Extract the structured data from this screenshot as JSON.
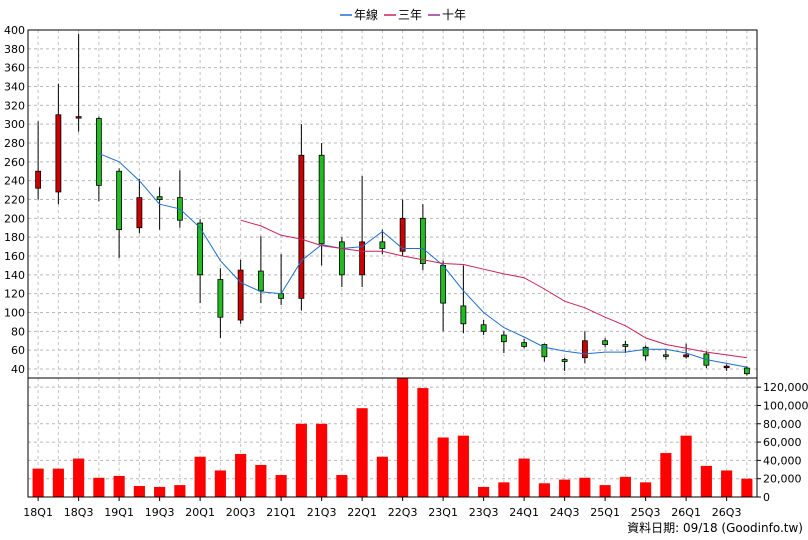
{
  "chart_data": {
    "type": "candlestick",
    "legend": [
      {
        "label": "年線",
        "color": "#1f6fd0"
      },
      {
        "label": "三年",
        "color": "#cc2255"
      },
      {
        "label": "十年",
        "color": "#993399"
      }
    ],
    "legend_position": "top-center",
    "price_axis": {
      "ticks": [
        40,
        60,
        80,
        100,
        120,
        140,
        160,
        180,
        200,
        220,
        240,
        260,
        280,
        300,
        320,
        340,
        360,
        380,
        400
      ],
      "range": [
        40,
        400
      ],
      "side": "left"
    },
    "volume_axis": {
      "ticks": [
        "0",
        "20,000",
        "40,000",
        "60,000",
        "80,000",
        "100,000",
        "120,000"
      ],
      "range": [
        0,
        130000
      ],
      "side": "right"
    },
    "x_tick_labels": [
      "18Q1",
      "18Q3",
      "19Q1",
      "19Q3",
      "20Q1",
      "20Q3",
      "21Q1",
      "21Q3",
      "22Q1",
      "22Q3",
      "23Q1",
      "23Q3",
      "24Q1",
      "24Q3",
      "25Q1",
      "25Q3",
      "26Q1",
      "26Q3"
    ],
    "grid": true,
    "up_color": "#cc0000",
    "down_color": "#22bb22",
    "volume_color": "#ff0000",
    "candles": [
      {
        "x": "18Q1",
        "open": 232,
        "high": 303,
        "low": 220,
        "close": 250
      },
      {
        "x": "18Q2",
        "open": 228,
        "high": 343,
        "low": 215,
        "close": 310
      },
      {
        "x": "18Q3",
        "open": 307,
        "high": 396,
        "low": 292,
        "close": 308
      },
      {
        "x": "18Q4",
        "open": 306,
        "high": 308,
        "low": 218,
        "close": 235
      },
      {
        "x": "19Q1",
        "open": 250,
        "high": 253,
        "low": 158,
        "close": 188
      },
      {
        "x": "19Q2",
        "open": 190,
        "high": 242,
        "low": 184,
        "close": 222
      },
      {
        "x": "19Q3",
        "open": 223,
        "high": 233,
        "low": 188,
        "close": 220
      },
      {
        "x": "19Q4",
        "open": 222,
        "high": 251,
        "low": 190,
        "close": 198
      },
      {
        "x": "20Q1",
        "open": 195,
        "high": 199,
        "low": 110,
        "close": 140
      },
      {
        "x": "20Q2",
        "open": 135,
        "high": 147,
        "low": 73,
        "close": 95
      },
      {
        "x": "20Q3",
        "open": 92,
        "high": 156,
        "low": 88,
        "close": 145
      },
      {
        "x": "20Q4",
        "open": 144,
        "high": 181,
        "low": 110,
        "close": 123
      },
      {
        "x": "21Q1",
        "open": 120,
        "high": 162,
        "low": 108,
        "close": 115
      },
      {
        "x": "21Q2",
        "open": 115,
        "high": 300,
        "low": 102,
        "close": 267
      },
      {
        "x": "21Q3",
        "open": 267,
        "high": 280,
        "low": 150,
        "close": 173
      },
      {
        "x": "21Q4",
        "open": 175,
        "high": 180,
        "low": 127,
        "close": 140
      },
      {
        "x": "22Q1",
        "open": 140,
        "high": 245,
        "low": 127,
        "close": 175
      },
      {
        "x": "22Q2",
        "open": 175,
        "high": 188,
        "low": 162,
        "close": 168
      },
      {
        "x": "22Q3",
        "open": 165,
        "high": 220,
        "low": 160,
        "close": 200
      },
      {
        "x": "22Q4",
        "open": 200,
        "high": 215,
        "low": 145,
        "close": 152
      },
      {
        "x": "23Q1",
        "open": 150,
        "high": 155,
        "low": 80,
        "close": 110
      },
      {
        "x": "23Q2",
        "open": 107,
        "high": 150,
        "low": 78,
        "close": 88
      },
      {
        "x": "23Q3",
        "open": 87,
        "high": 92,
        "low": 76,
        "close": 80
      },
      {
        "x": "23Q4",
        "open": 76,
        "high": 80,
        "low": 57,
        "close": 69
      },
      {
        "x": "24Q1",
        "open": 68,
        "high": 72,
        "low": 62,
        "close": 64
      },
      {
        "x": "24Q2",
        "open": 66,
        "high": 67,
        "low": 48,
        "close": 53
      },
      {
        "x": "24Q3",
        "open": 50,
        "high": 52,
        "low": 38,
        "close": 48
      },
      {
        "x": "24Q4",
        "open": 52,
        "high": 80,
        "low": 46,
        "close": 70
      },
      {
        "x": "25Q1",
        "open": 70,
        "high": 73,
        "low": 63,
        "close": 66
      },
      {
        "x": "25Q2",
        "open": 66,
        "high": 70,
        "low": 57,
        "close": 64
      },
      {
        "x": "25Q3",
        "open": 63,
        "high": 65,
        "low": 49,
        "close": 54
      },
      {
        "x": "25Q4",
        "open": 55,
        "high": 60,
        "low": 50,
        "close": 54
      },
      {
        "x": "26Q1",
        "open": 53,
        "high": 67,
        "low": 51,
        "close": 55
      },
      {
        "x": "26Q2",
        "open": 56,
        "high": 59,
        "low": 41,
        "close": 44
      },
      {
        "x": "26Q3",
        "open": 43,
        "high": 45,
        "low": 38,
        "close": 43
      },
      {
        "x": "26Q4",
        "open": 41,
        "high": 43,
        "low": 33,
        "close": 35
      }
    ],
    "volume": [
      31000,
      31000,
      42000,
      21000,
      23000,
      12000,
      11000,
      13000,
      44000,
      29000,
      47000,
      35000,
      24000,
      80000,
      80000,
      24000,
      97000,
      44000,
      130000,
      119000,
      65000,
      67000,
      11000,
      16000,
      42000,
      15000,
      19000,
      21000,
      13000,
      22000,
      16000,
      48000,
      67000,
      34000,
      29000,
      20000
    ],
    "line_year": [
      null,
      null,
      null,
      269,
      260,
      240,
      215,
      210,
      190,
      155,
      132,
      122,
      120,
      155,
      172,
      168,
      170,
      186,
      168,
      168,
      150,
      123,
      100,
      84,
      74,
      63,
      59,
      56,
      58,
      58,
      61,
      61,
      57,
      50,
      46,
      42
    ],
    "line_three_year": [
      null,
      null,
      null,
      null,
      null,
      null,
      null,
      null,
      null,
      null,
      198,
      192,
      182,
      178,
      171,
      168,
      165,
      165,
      160,
      156,
      152,
      151,
      146,
      141,
      137,
      125,
      112,
      105,
      95,
      86,
      73,
      66,
      62,
      58,
      55,
      52
    ],
    "line_ten_year": []
  },
  "source_label": "資料日期: 09/18  (Goodinfo.tw)"
}
